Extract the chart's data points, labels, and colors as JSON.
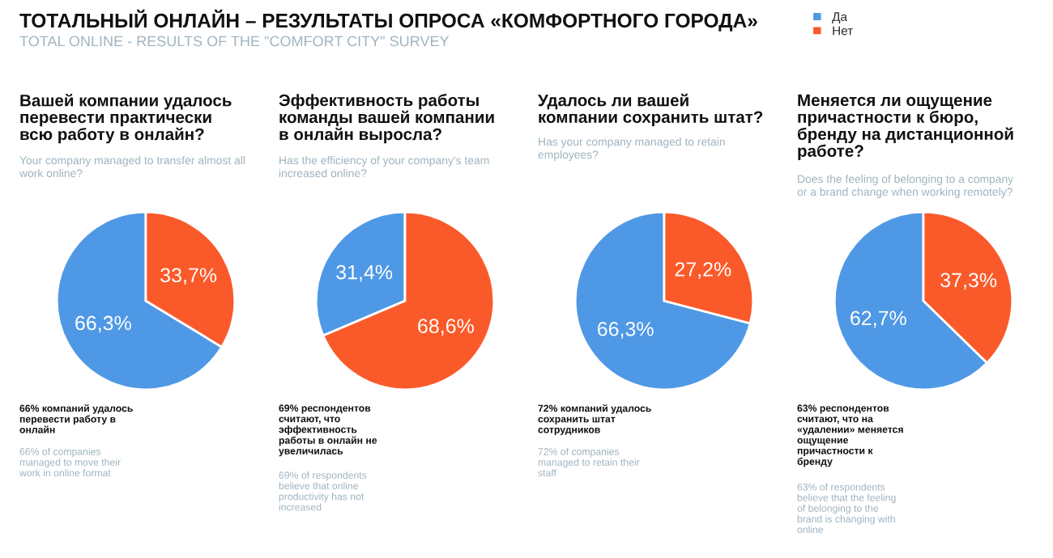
{
  "chart_data": [
    {
      "type": "other",
      "title": "ТОТАЛЬНЫЙ ОНЛАЙН – РЕЗУЛЬТАТЫ ОПРОСА «КОМФОРТНОГО ГОРОДА»",
      "subtitle": "TOTAL ONLINE - RESULTS OF THE \"COMFORT CITY\" SURVEY"
    },
    {
      "type": "pie",
      "title": "Вашей компании удалось\nперевести практически\nвсю работу в онлайн?",
      "subtitle": "Your company managed to transfer almost all\nwork online?",
      "categories": [
        "Да",
        "Нет"
      ],
      "values": [
        66.3,
        33.7
      ],
      "colors": [
        "#4f98e5",
        "#fa5a2a"
      ],
      "value_labels": [
        "66,3%",
        "33,7%"
      ],
      "legend": "top right",
      "annotations": [
        "66% компаний удалось\nперевести работу в\nонлайн",
        "66% of companies\nmanaged to move their\nwork in online format"
      ]
    },
    {
      "type": "pie",
      "title": "Эффективность работы\nкоманды вашей компании\nв онлайн выросла?",
      "subtitle": "Has the efficiency of your company's team\nincreased online?",
      "values": [
        31.4,
        68.6
      ],
      "colors": [
        "#4f98e5",
        "#fa5a2a"
      ],
      "value_labels": [
        "31,4%",
        "68,6%"
      ],
      "annotations": [
        "69% респондентов\nсчитают, что\nэффективность\nработы в онлайн не\nувеличилась",
        "69% of respondents\nbelieve that online\nproductivity has not\nincreased"
      ]
    },
    {
      "type": "pie",
      "title": "Удалось ли вашей\nкомпании сохранить штат?",
      "subtitle": "Has your company managed to retain\nemployees?",
      "values": [
        66.3,
        27.2
      ],
      "colors": [
        "#4f98e5",
        "#fa5a2a"
      ],
      "value_labels": [
        "66,3%",
        "27,2%"
      ],
      "annotations": [
        "72% компаний удалось\nсохранить штат\nсотрудников",
        "72% of companies\nmanaged to retain their\nstaff"
      ]
    },
    {
      "type": "pie",
      "title": "Меняется ли ощущение\nпричастности к бюро,\nбренду на дистанционной\nработе?",
      "subtitle": "Does the feeling of belonging to a company\nor a brand change when working remotely?",
      "values": [
        62.7,
        37.3
      ],
      "colors": [
        "#4f98e5",
        "#fa5a2a"
      ],
      "value_labels": [
        "62,7%",
        "37,3%"
      ],
      "annotations": [
        "63% респондентов\nсчитают, что на\n«удалении» меняется\nощущение\nпричастности к\nбренду",
        "63% of respondents\nbelieve that the feeling\nof belonging to the\nbrand is changing with\nonline"
      ]
    }
  ]
}
